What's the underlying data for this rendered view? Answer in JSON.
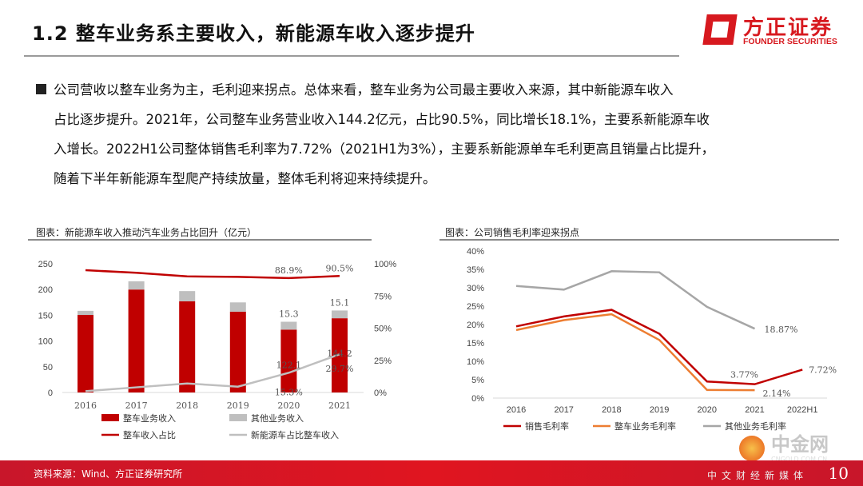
{
  "header": {
    "title": "1.2 整车业务系主要收入，新能源车收入逐步提升",
    "logo_cn": "方正证券",
    "logo_en": "FOUNDER SECURITIES"
  },
  "body": {
    "lines": [
      "公司营收以整车业务为主，毛利迎来拐点。总体来看，整车业务为公司最主要收入来源，其中新能源车收入",
      "占比逐步提升。2021年，公司整车业务营业收入144.2亿元，占比90.5%，同比增长18.1%，主要系新能源车收",
      "入增长。2022H1公司整体销售毛利率为7.72%（2021H1为3%），主要系新能源单车毛利更高且销量占比提升，",
      "随着下半年新能源车型爬产持续放量，整体毛利将迎来持续提升。"
    ]
  },
  "chart_data": [
    {
      "type": "bar",
      "title": "图表：新能源车收入推动汽车业务占比回升（亿元）",
      "categories": [
        "2016",
        "2017",
        "2018",
        "2019",
        "2020",
        "2021"
      ],
      "ylim": [
        0,
        250
      ],
      "yticks": [
        "0",
        "50",
        "100",
        "150",
        "200",
        "250"
      ],
      "y2lim": [
        0,
        100
      ],
      "y2ticks": [
        "0%",
        "25%",
        "50%",
        "75%",
        "100%"
      ],
      "stacked": true,
      "series": [
        {
          "name": "整车业务收入",
          "kind": "bar",
          "axis": "left",
          "color": "#c00000",
          "values": [
            150.6,
            200,
            177,
            157,
            122.1,
            144.2
          ],
          "labels": [
            null,
            null,
            null,
            null,
            "122.1",
            "144.2"
          ]
        },
        {
          "name": "其他业务收入",
          "kind": "bar",
          "axis": "left",
          "color": "#bfbfbf",
          "values": [
            8,
            16,
            20,
            18,
            15.3,
            15.1
          ],
          "labels": [
            null,
            null,
            null,
            null,
            "15.3",
            "15.1"
          ]
        },
        {
          "name": "整车收入占比",
          "kind": "line",
          "axis": "right",
          "color": "#c00000",
          "values": [
            95,
            93,
            90.2,
            89.8,
            88.9,
            90.5
          ],
          "labels": [
            null,
            null,
            null,
            null,
            "88.9%",
            "90.5%"
          ]
        },
        {
          "name": "新能源车占比整车收入",
          "kind": "line",
          "axis": "right",
          "color": "#bfbfbf",
          "values": [
            1,
            4,
            7,
            4.5,
            15.3,
            29.7
          ],
          "labels": [
            null,
            null,
            null,
            null,
            "15.3%",
            "29.7%"
          ]
        }
      ],
      "legend": "bottom"
    },
    {
      "type": "line",
      "title": "图表：公司销售毛利率迎来拐点",
      "categories": [
        "2016",
        "2017",
        "2018",
        "2019",
        "2020",
        "2021",
        "2022H1"
      ],
      "ylim": [
        0,
        40
      ],
      "yticks": [
        "0%",
        "5%",
        "10%",
        "15%",
        "20%",
        "25%",
        "30%",
        "35%",
        "40%"
      ],
      "series": [
        {
          "name": "销售毛利率",
          "color": "#c00000",
          "values": [
            19.5,
            22.2,
            24,
            17.5,
            4.5,
            3.77,
            7.72
          ],
          "labels": [
            null,
            null,
            null,
            null,
            null,
            "3.77%",
            "7.72%"
          ]
        },
        {
          "name": "整车业务毛利率",
          "color": "#ed7d31",
          "values": [
            18.5,
            21.2,
            22.8,
            15.8,
            2.2,
            2.14,
            null
          ],
          "labels": [
            null,
            null,
            null,
            null,
            null,
            "2.14%",
            null
          ]
        },
        {
          "name": "其他业务毛利率",
          "color": "#a6a6a6",
          "values": [
            30.5,
            29.5,
            34.5,
            34.2,
            24.8,
            18.87,
            null
          ],
          "labels": [
            null,
            null,
            null,
            null,
            null,
            "18.87%",
            null
          ]
        }
      ],
      "legend": "bottom"
    }
  ],
  "footer": {
    "source": "资料来源：Wind、方正证券研究所",
    "page": "10"
  },
  "watermark": {
    "cn": "中金网",
    "en": "CNGOLD.COM.CN",
    "sub": "中文财经新媒体"
  }
}
